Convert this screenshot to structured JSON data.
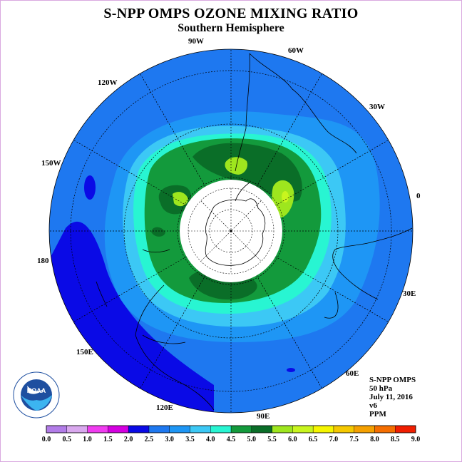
{
  "title": "S-NPP OMPS OZONE MIXING RATIO",
  "subtitle": "Southern Hemisphere",
  "longitude_labels": {
    "lon_90w": "90W",
    "lon_60w": "60W",
    "lon_120w": "120W",
    "lon_30w": "30W",
    "lon_150w": "150W",
    "lon_0": "0",
    "lon_180": "180",
    "lon_30e": "30E",
    "lon_150e": "150E",
    "lon_60e": "60E",
    "lon_120e": "120E",
    "lon_90e": "90E"
  },
  "info": {
    "instrument": "S-NPP OMPS",
    "level": "50 hPa",
    "date": "July 11, 2016",
    "version": "v6",
    "units": "PPM"
  },
  "logo": {
    "text": "NOAA"
  },
  "colorbar": {
    "labels": [
      "0.0",
      "0.5",
      "1.0",
      "1.5",
      "2.0",
      "2.5",
      "3.0",
      "3.5",
      "4.0",
      "4.5",
      "5.0",
      "5.5",
      "6.0",
      "6.5",
      "7.0",
      "7.5",
      "8.0",
      "8.5",
      "9.0"
    ],
    "colors": [
      "#b27ce8",
      "#d9a8ee",
      "#f03cf0",
      "#d400e0",
      "#0a0ae6",
      "#1e78f0",
      "#1e96f5",
      "#3cc8f5",
      "#28f5d2",
      "#139a3c",
      "#0a6e28",
      "#9ee61e",
      "#c8f51e",
      "#f5f500",
      "#f5c800",
      "#f5a000",
      "#f56e00",
      "#f01e00",
      "#8b5a3c"
    ]
  },
  "map": {
    "projection": "polar stereographic",
    "hemisphere": "Southern",
    "field": "ozone mixing ratio",
    "no_data_region": "polar night (white cap)",
    "contour_values_ppm": [
      1.5,
      2.0,
      2.5,
      3.0,
      3.5,
      4.0,
      4.5,
      5.0,
      5.5
    ]
  }
}
